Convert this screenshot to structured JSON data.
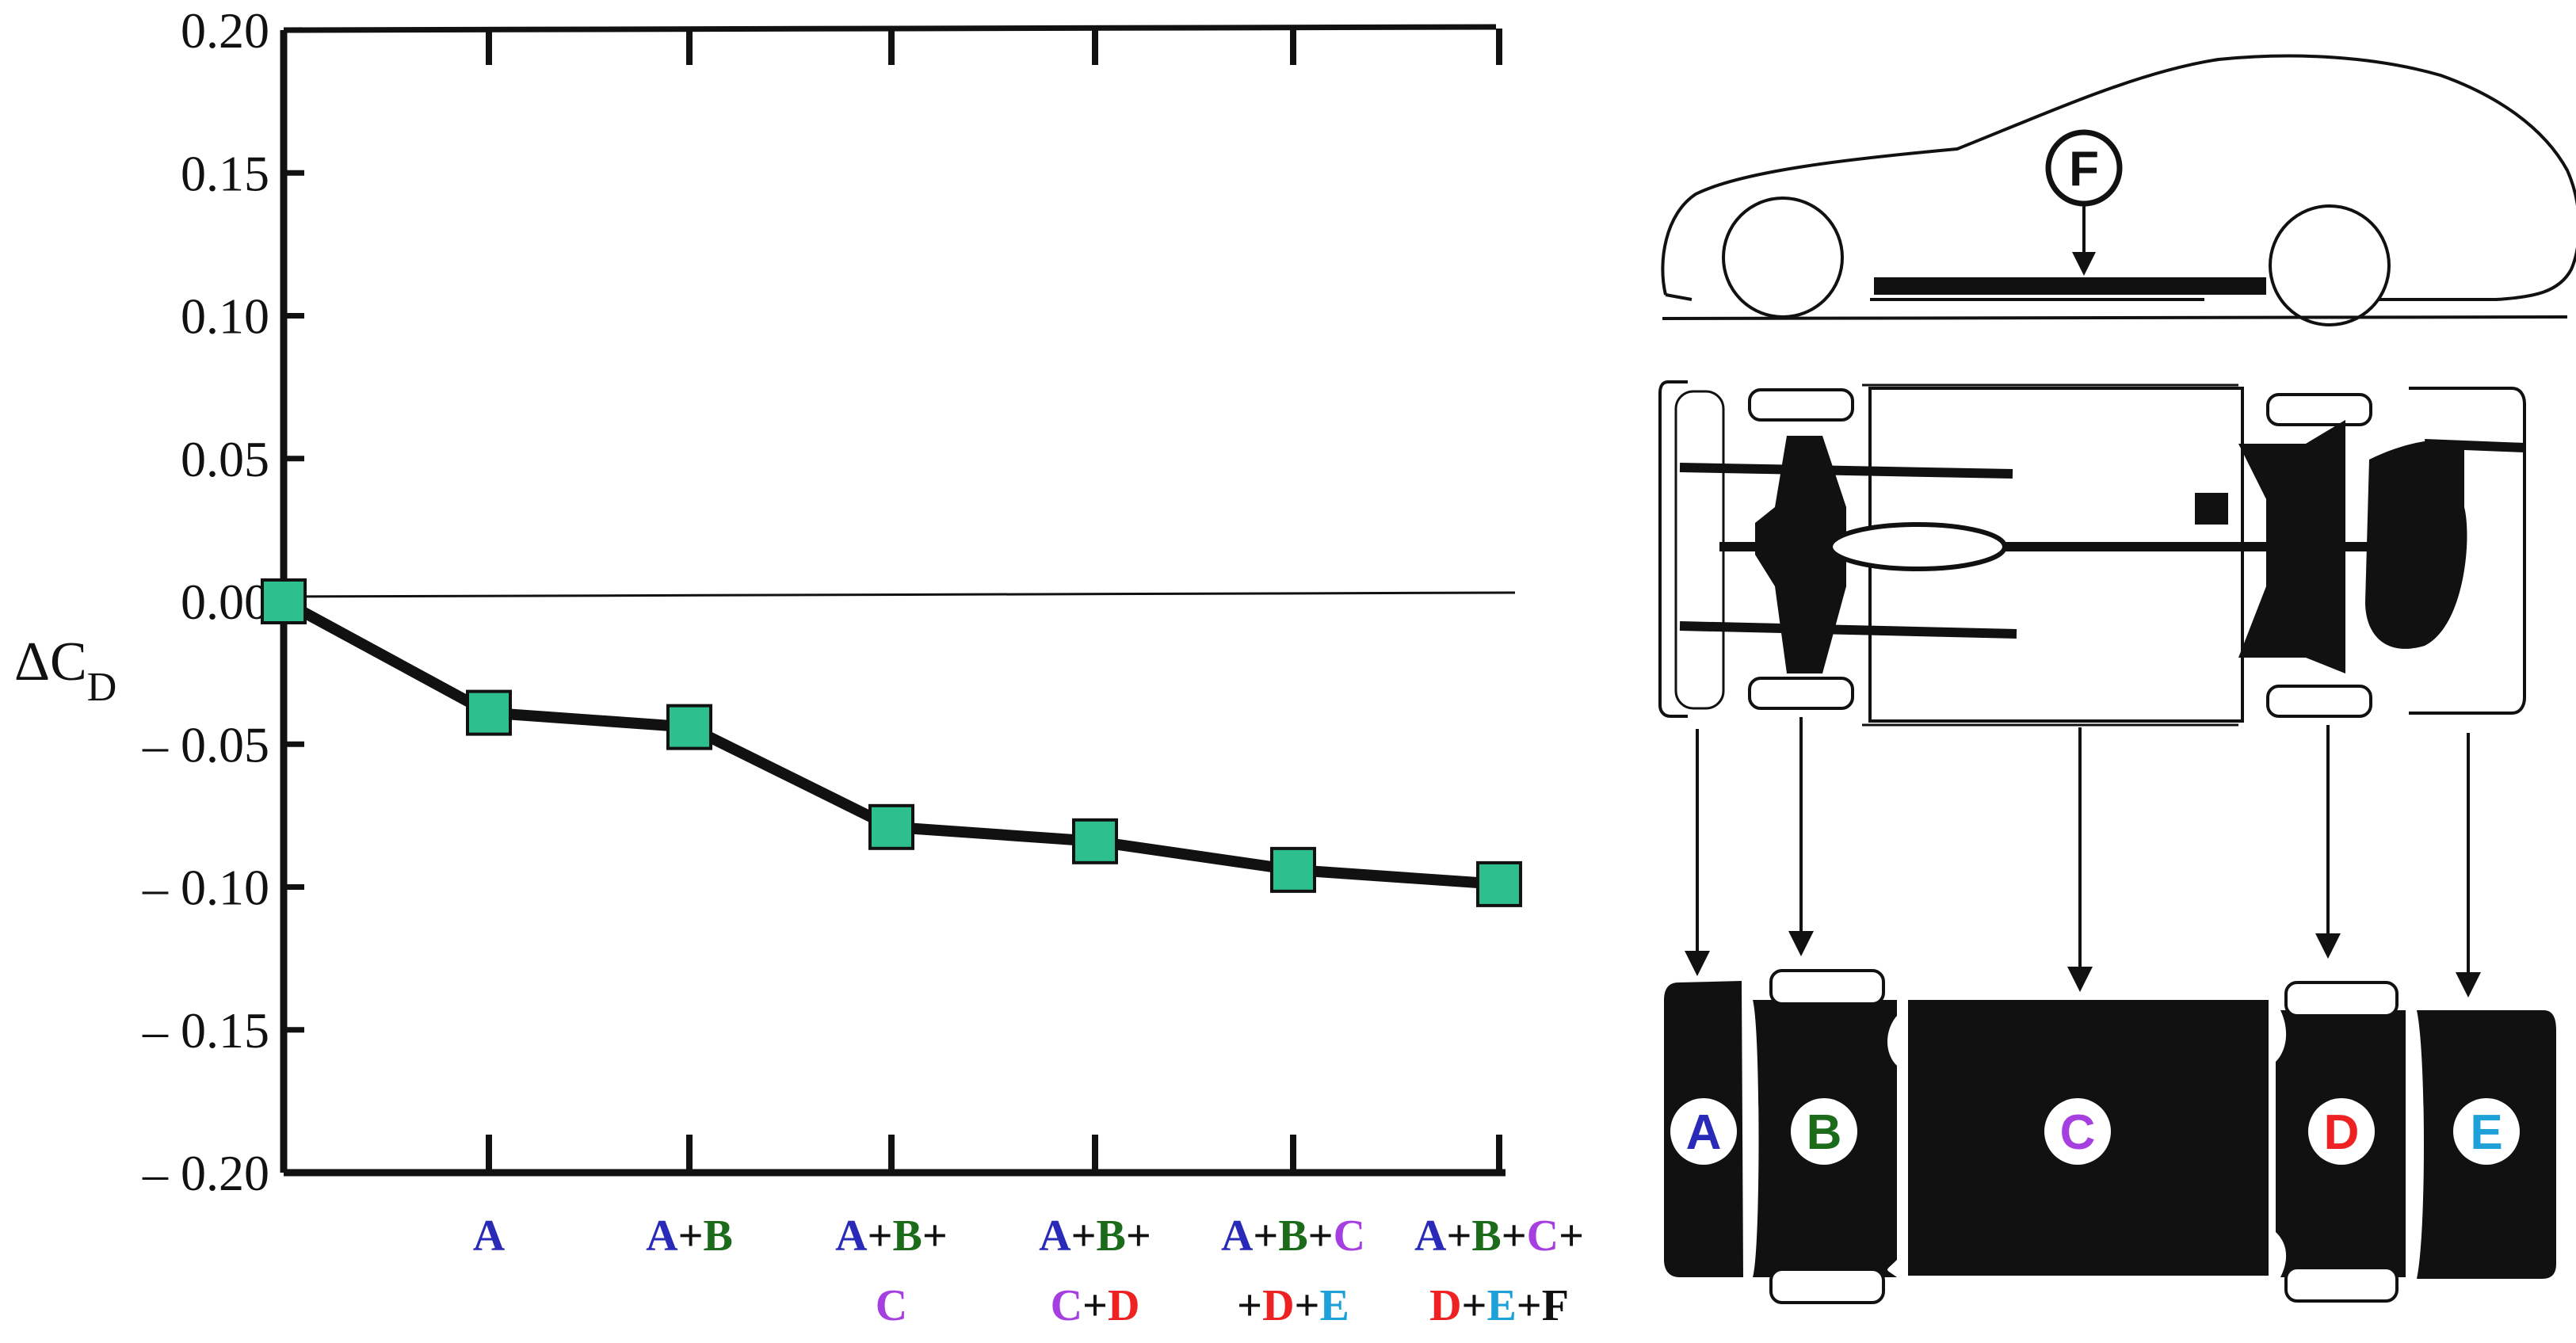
{
  "chart_data": {
    "type": "line",
    "ylabel_main": "ΔC",
    "ylabel_sub": "D",
    "ylim": [
      -0.2,
      0.2
    ],
    "yticks": [
      "0.20",
      "0.15",
      "0.10",
      "0.05",
      "0.00",
      "– 0.05",
      "– 0.10",
      "– 0.15",
      "– 0.20"
    ],
    "ytick_values": [
      0.2,
      0.15,
      0.1,
      0.05,
      0.0,
      -0.05,
      -0.1,
      -0.15,
      -0.2
    ],
    "grid": false,
    "marker_color": "#2dbf8e",
    "line_color": "#111111",
    "categories": [
      [],
      [
        {
          "t": "A",
          "c": "A"
        }
      ],
      [
        {
          "t": "A",
          "c": "A"
        },
        {
          "t": "+",
          "c": "plus"
        },
        {
          "t": "B",
          "c": "B"
        }
      ],
      [
        {
          "t": "A",
          "c": "A"
        },
        {
          "t": "+",
          "c": "plus"
        },
        {
          "t": "B",
          "c": "B"
        },
        {
          "t": "+",
          "c": "plus"
        },
        {
          "t": "|",
          "c": "br"
        },
        {
          "t": "C",
          "c": "C"
        }
      ],
      [
        {
          "t": "A",
          "c": "A"
        },
        {
          "t": "+",
          "c": "plus"
        },
        {
          "t": "B",
          "c": "B"
        },
        {
          "t": "+",
          "c": "plus"
        },
        {
          "t": "|",
          "c": "br"
        },
        {
          "t": "C",
          "c": "C"
        },
        {
          "t": "+",
          "c": "plus"
        },
        {
          "t": "D",
          "c": "D"
        }
      ],
      [
        {
          "t": "A",
          "c": "A"
        },
        {
          "t": "+",
          "c": "plus"
        },
        {
          "t": "B",
          "c": "B"
        },
        {
          "t": "+",
          "c": "plus"
        },
        {
          "t": "C",
          "c": "C"
        },
        {
          "t": "|",
          "c": "br"
        },
        {
          "t": "+",
          "c": "plus"
        },
        {
          "t": "D",
          "c": "D"
        },
        {
          "t": "+",
          "c": "plus"
        },
        {
          "t": "E",
          "c": "E"
        }
      ],
      [
        {
          "t": "A",
          "c": "A"
        },
        {
          "t": "+",
          "c": "plus"
        },
        {
          "t": "B",
          "c": "B"
        },
        {
          "t": "+",
          "c": "plus"
        },
        {
          "t": "C",
          "c": "C"
        },
        {
          "t": "+",
          "c": "plus"
        },
        {
          "t": "|",
          "c": "br"
        },
        {
          "t": "D",
          "c": "D"
        },
        {
          "t": "+",
          "c": "plus"
        },
        {
          "t": "E",
          "c": "E"
        },
        {
          "t": "+",
          "c": "plus"
        },
        {
          "t": "F",
          "c": "plus"
        }
      ]
    ],
    "values": [
      0.0,
      -0.039,
      -0.044,
      -0.079,
      -0.084,
      -0.094,
      -0.099
    ]
  },
  "colors": {
    "A": "#2a2ab8",
    "B": "#1b6b1b",
    "C": "#a63fe0",
    "D": "#ee2222",
    "E": "#1ea0d8",
    "plus": "#111111"
  },
  "diagram": {
    "side_view_label": "F",
    "zones": [
      "A",
      "B",
      "C",
      "D",
      "E"
    ]
  }
}
